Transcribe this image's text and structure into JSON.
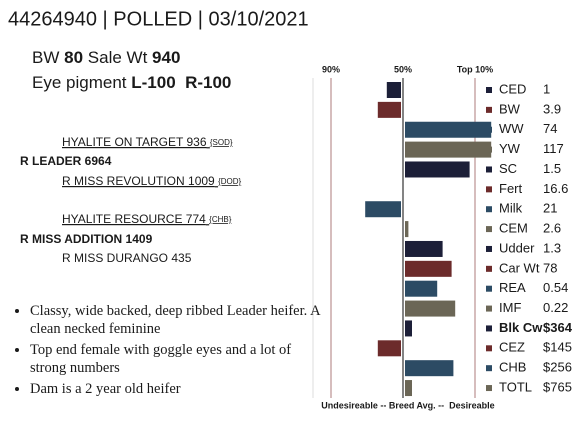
{
  "header": {
    "title": "44264940 | POLLED | 03/10/2021",
    "bw_label": "BW",
    "bw": "80",
    "sale_wt_label": "Sale Wt",
    "sale_wt": "940",
    "eye_label": "Eye pigment",
    "eye": "L-100  R-100"
  },
  "pedigree": {
    "sire_sire": "HYALITE ON TARGET 936",
    "sire_sire_code": "{SOD}",
    "sire": "R LEADER 6964",
    "sire_dam": "R MISS REVOLUTION 1009",
    "sire_dam_code": "{DOD}",
    "dam_sire": "HYALITE RESOURCE 774",
    "dam_sire_code": "{CHB}",
    "dam": "R MISS ADDITION 1409",
    "dam_dam": "R MISS DURANGO 435"
  },
  "bullets": [
    "Classy, wide backed, deep ribbed Leader heifer. A clean necked feminine",
    "Top end female with goggle eyes and a lot of strong numbers",
    "Dam is a 2 year old heifer"
  ],
  "chart_data": {
    "type": "bar",
    "orientation": "horizontal",
    "categories": [
      "CED",
      "BW",
      "WW",
      "YW",
      "SC",
      "Fert",
      "Milk",
      "CEM",
      "Udder",
      "Car Wt",
      "REA",
      "IMF",
      "Blk Cw",
      "CEZ",
      "CHB",
      "TOTL"
    ],
    "epds": [
      "1",
      "3.9",
      "74",
      "117",
      "1.5",
      "16.6",
      "21",
      "2.6",
      "1.3",
      "78",
      "0.54",
      "0.22",
      "$364",
      "$145",
      "$256",
      "$765"
    ],
    "values": [
      59,
      64,
      1,
      1,
      13,
      50,
      71,
      47,
      28,
      23,
      31,
      21,
      45,
      64,
      22,
      45
    ],
    "colors": [
      "#1c1f38",
      "#6c2b2b",
      "#2c4b64",
      "#6b6656",
      "#1c1f38",
      "#6c2b2b",
      "#2c4b64",
      "#6b6656",
      "#1c1f38",
      "#6c2b2b",
      "#2c4b64",
      "#6b6656",
      "#1c1f38",
      "#6c2b2b",
      "#2c4b64",
      "#6b6656"
    ],
    "xlim": [
      100,
      0
    ],
    "xticks": [
      {
        "value": 90,
        "label": "90%"
      },
      {
        "value": 50,
        "label": "50%"
      },
      {
        "value": 10,
        "label": "Top 10%"
      }
    ],
    "x_label": "Undesireable -- Breed Avg. --  Desireable"
  }
}
